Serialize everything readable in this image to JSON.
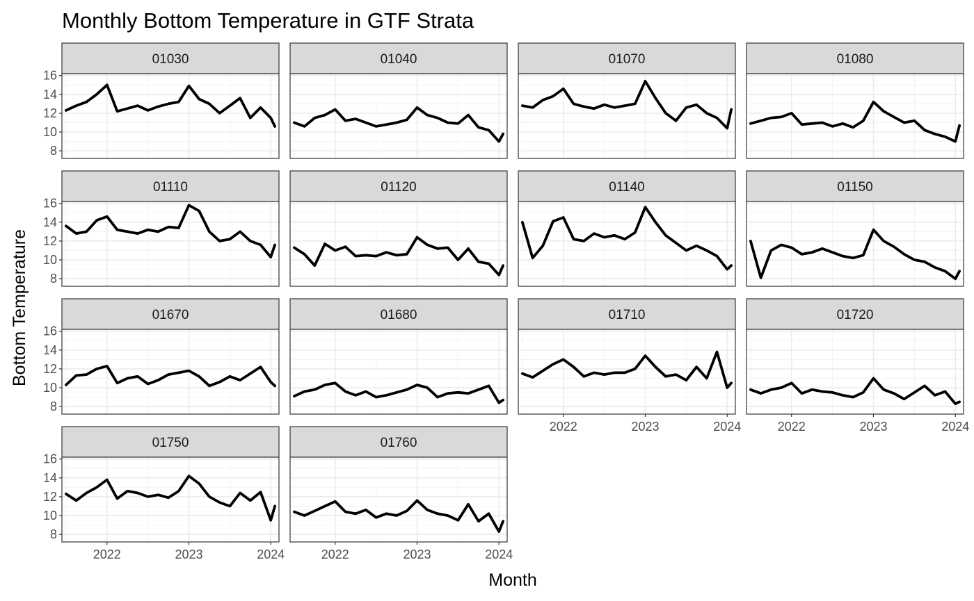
{
  "chart_data": {
    "type": "line",
    "title": "Monthly Bottom Temperature in GTF Strata",
    "xlabel": "Month",
    "ylabel": "Bottom Temperature",
    "xlim": [
      2021.45,
      2024.1
    ],
    "ylim": [
      7.2,
      16.2
    ],
    "x_ticks": [
      2022,
      2023,
      2024
    ],
    "x_tick_labels": [
      "2022",
      "2023",
      "2024"
    ],
    "y_ticks": [
      8,
      10,
      12,
      14,
      16
    ],
    "y_tick_labels": [
      "8",
      "10",
      "12",
      "14",
      "16"
    ],
    "grid": true,
    "legend": "none",
    "line_color": "#000000",
    "strip_fill": "#d9d9d9",
    "x": [
      2021.5,
      2021.625,
      2021.75,
      2021.875,
      2022.0,
      2022.125,
      2022.25,
      2022.375,
      2022.5,
      2022.625,
      2022.75,
      2022.875,
      2023.0,
      2023.125,
      2023.25,
      2023.375,
      2023.5,
      2023.625,
      2023.75,
      2023.875,
      2024.0,
      2024.05
    ],
    "panels": [
      {
        "label": "01030",
        "values": [
          12.3,
          12.8,
          13.2,
          14.0,
          15.0,
          12.2,
          12.5,
          12.8,
          12.3,
          12.7,
          13.0,
          13.2,
          14.9,
          13.5,
          13.0,
          12.0,
          12.8,
          13.6,
          11.5,
          12.6,
          11.5,
          10.6
        ]
      },
      {
        "label": "01040",
        "values": [
          11.0,
          10.6,
          11.5,
          11.8,
          12.4,
          11.2,
          11.4,
          11.0,
          10.6,
          10.8,
          11.0,
          11.3,
          12.6,
          11.8,
          11.5,
          11.0,
          10.9,
          11.8,
          10.5,
          10.2,
          9.0,
          9.8
        ]
      },
      {
        "label": "01070",
        "values": [
          12.8,
          12.6,
          13.4,
          13.8,
          14.6,
          13.0,
          12.7,
          12.5,
          12.9,
          12.6,
          12.8,
          13.0,
          15.4,
          13.6,
          12.0,
          11.2,
          12.6,
          12.9,
          12.0,
          11.5,
          10.4,
          12.4
        ]
      },
      {
        "label": "01080",
        "values": [
          10.9,
          11.2,
          11.5,
          11.6,
          12.0,
          10.8,
          10.9,
          11.0,
          10.6,
          10.9,
          10.5,
          11.2,
          13.2,
          12.2,
          11.6,
          11.0,
          11.2,
          10.2,
          9.8,
          9.5,
          9.0,
          10.7
        ]
      },
      {
        "label": "01110",
        "values": [
          13.6,
          12.8,
          13.0,
          14.2,
          14.6,
          13.2,
          13.0,
          12.8,
          13.2,
          13.0,
          13.5,
          13.4,
          15.8,
          15.2,
          13.0,
          12.0,
          12.2,
          13.0,
          12.0,
          11.6,
          10.3,
          11.6
        ]
      },
      {
        "label": "01120",
        "values": [
          11.3,
          10.6,
          9.4,
          11.7,
          11.0,
          11.4,
          10.4,
          10.5,
          10.4,
          10.8,
          10.5,
          10.6,
          12.4,
          11.6,
          11.2,
          11.3,
          10.0,
          11.2,
          9.8,
          9.6,
          8.4,
          9.4
        ]
      },
      {
        "label": "01140",
        "values": [
          14.0,
          10.2,
          11.5,
          14.1,
          14.5,
          12.2,
          12.0,
          12.8,
          12.4,
          12.6,
          12.2,
          12.9,
          15.6,
          14.0,
          12.6,
          11.8,
          11.0,
          11.5,
          11.0,
          10.4,
          9.0,
          9.4
        ]
      },
      {
        "label": "01150",
        "values": [
          12.0,
          8.1,
          11.0,
          11.6,
          11.3,
          10.6,
          10.8,
          11.2,
          10.8,
          10.4,
          10.2,
          10.5,
          13.2,
          12.0,
          11.4,
          10.6,
          10.0,
          9.8,
          9.2,
          8.8,
          8.0,
          8.8
        ]
      },
      {
        "label": "01670",
        "values": [
          10.3,
          11.3,
          11.4,
          12.0,
          12.3,
          10.5,
          11.0,
          11.2,
          10.4,
          10.8,
          11.4,
          11.6,
          11.8,
          11.2,
          10.2,
          10.6,
          11.2,
          10.8,
          11.5,
          12.2,
          10.6,
          10.2
        ]
      },
      {
        "label": "01680",
        "values": [
          9.1,
          9.6,
          9.8,
          10.3,
          10.5,
          9.6,
          9.2,
          9.6,
          9.0,
          9.2,
          9.5,
          9.8,
          10.3,
          10.0,
          9.0,
          9.4,
          9.5,
          9.4,
          9.8,
          10.2,
          8.4,
          8.7
        ]
      },
      {
        "label": "01710",
        "values": [
          11.5,
          11.1,
          11.8,
          12.5,
          13.0,
          12.2,
          11.2,
          11.6,
          11.4,
          11.6,
          11.6,
          12.0,
          13.4,
          12.2,
          11.2,
          11.4,
          10.8,
          12.2,
          11.0,
          13.8,
          10.0,
          10.5
        ]
      },
      {
        "label": "01720",
        "values": [
          9.8,
          9.4,
          9.8,
          10.0,
          10.5,
          9.4,
          9.8,
          9.6,
          9.5,
          9.2,
          9.0,
          9.5,
          11.0,
          9.8,
          9.4,
          8.8,
          9.5,
          10.2,
          9.2,
          9.6,
          8.3,
          8.5
        ]
      },
      {
        "label": "01750",
        "values": [
          12.3,
          11.6,
          12.4,
          13.0,
          13.8,
          11.8,
          12.6,
          12.4,
          12.0,
          12.2,
          11.9,
          12.6,
          14.2,
          13.4,
          12.0,
          11.4,
          11.0,
          12.4,
          11.6,
          12.5,
          9.5,
          11.0
        ]
      },
      {
        "label": "01760",
        "values": [
          10.4,
          10.0,
          10.5,
          11.0,
          11.5,
          10.4,
          10.2,
          10.6,
          9.8,
          10.2,
          10.0,
          10.5,
          11.6,
          10.6,
          10.2,
          10.0,
          9.5,
          11.2,
          9.4,
          10.2,
          8.3,
          9.4
        ]
      }
    ]
  }
}
